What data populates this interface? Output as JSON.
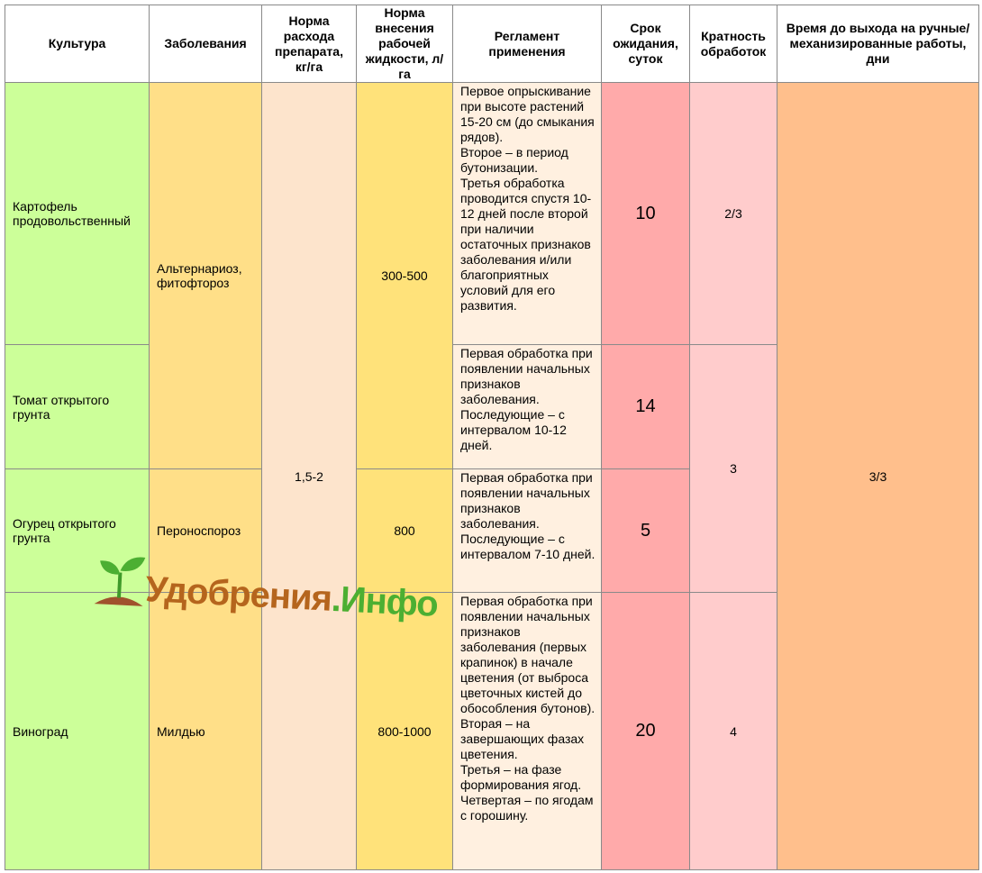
{
  "table": {
    "header": [
      "Культура",
      "Заболевания",
      "Норма расхода препарата, кг/га",
      "Норма внесения рабочей жидкости, л/га",
      "Регламент применения",
      "Срок ожидания, суток",
      "Кратность обработок",
      "Время до выхода на ручные/механизированные работы, дни"
    ],
    "rows": [
      {
        "crop": "Картофель продовольственный",
        "disease": "Альтернариоз, фитофтороз",
        "rate": "1,5-2",
        "liquid": "300-500",
        "regulation": [
          "Первое опрыскивание при высоте растений 15-20 см (до смыкания рядов).",
          "Второе – в период бутонизации.",
          "Третья обработка проводится спустя 10-12 дней после второй при наличии остаточных признаков заболевания и/или благоприятных условий для его развития."
        ],
        "wait": 10,
        "multiplicity": "2/3",
        "reentry": "3/3"
      },
      {
        "crop": "Томат открытого грунта",
        "regulation": [
          "Первая обработка при появлении начальных признаков заболевания.",
          "Последующие – с интервалом 10-12 дней."
        ],
        "wait": 14,
        "multiplicity": "3"
      },
      {
        "crop": "Огурец открытого грунта",
        "disease": "Пероноспороз",
        "liquid": "800",
        "regulation": [
          "Первая обработка при появлении начальных признаков заболевания.",
          "Последующие – с интервалом 7-10 дней."
        ],
        "wait": 5
      },
      {
        "crop": "Виноград",
        "disease": "Милдью",
        "liquid": "800-1000",
        "regulation": [
          "Первая обработка при появлении начальных признаков заболевания (первых крапинок) в начале цветения (от выброса цветочных кистей до обособления бутонов).",
          "Вторая – на завершающих фазах цветения.",
          "Третья – на фазе формирования ягод.",
          "Четвертая – по ягодам с горошину."
        ],
        "wait": 20,
        "multiplicity": "4"
      }
    ]
  },
  "watermark": [
    "Удобрения",
    ".Инфо"
  ]
}
